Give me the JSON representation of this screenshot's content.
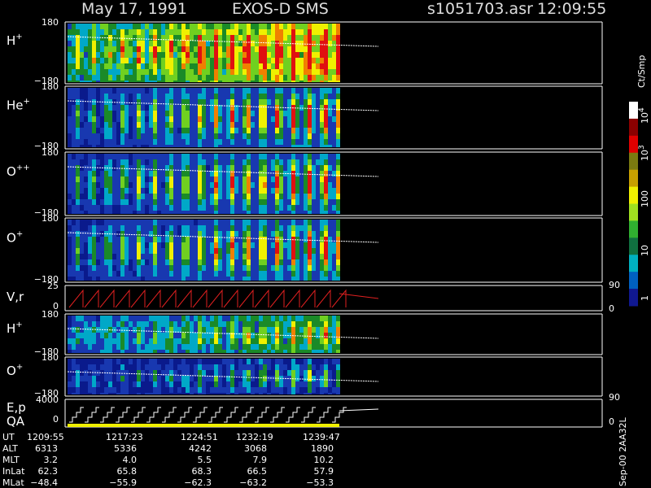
{
  "header": {
    "date": "May 17, 1991",
    "instrument": "EXOS-D SMS",
    "file": "s1051703.asr",
    "time": "12:09:55"
  },
  "spectrogram_panels": [
    {
      "ion": "H",
      "charge": "+",
      "ymax": "180",
      "ymin": "−180"
    },
    {
      "ion": "He",
      "charge": "+",
      "ymax": "180",
      "ymin": "−180"
    },
    {
      "ion": "O",
      "charge": "++",
      "ymax": "180",
      "ymin": "−180"
    },
    {
      "ion": "O",
      "charge": "+",
      "ymax": "180",
      "ymin": "−180"
    }
  ],
  "velocity_panel": {
    "label": "V,r",
    "left_ticks": [
      "25",
      "0"
    ],
    "right_ticks": [
      "90",
      "0"
    ]
  },
  "low_panels": [
    {
      "ion": "H",
      "charge": "+",
      "ymax": "180",
      "ymin": "−180"
    },
    {
      "ion": "O",
      "charge": "+",
      "ymax": "180",
      "ymin": "−180"
    }
  ],
  "energy_panel": {
    "label": "E,p",
    "left_ticks": [
      "4000",
      "0"
    ],
    "right_ticks": [
      "90",
      "0"
    ]
  },
  "qa_label": "QA",
  "colorbar": {
    "unit": "Ct/Smp",
    "labels": [
      {
        "base": "10",
        "exp": "4"
      },
      {
        "base": "10",
        "exp": "3"
      },
      {
        "base": "100"
      },
      {
        "base": "10"
      },
      {
        "base": "1"
      }
    ]
  },
  "table": {
    "row_labels": [
      "UT",
      "ALT",
      "MLT",
      "InLat",
      "MLat"
    ],
    "columns": [
      [
        "1209:55",
        "6313",
        "3.2",
        "62.3",
        "−48.4"
      ],
      [
        "1217:23",
        "5336",
        "4.0",
        "65.8",
        "−55.9"
      ],
      [
        "1224:51",
        "4242",
        "5.5",
        "68.3",
        "−62.3"
      ],
      [
        "1232:19",
        "3068",
        "7.9",
        "66.5",
        "−63.2"
      ],
      [
        "1239:47",
        "1890",
        "10.2",
        "57.9",
        "−53.3"
      ]
    ]
  },
  "footer": "Sep-00  2AA32L"
}
